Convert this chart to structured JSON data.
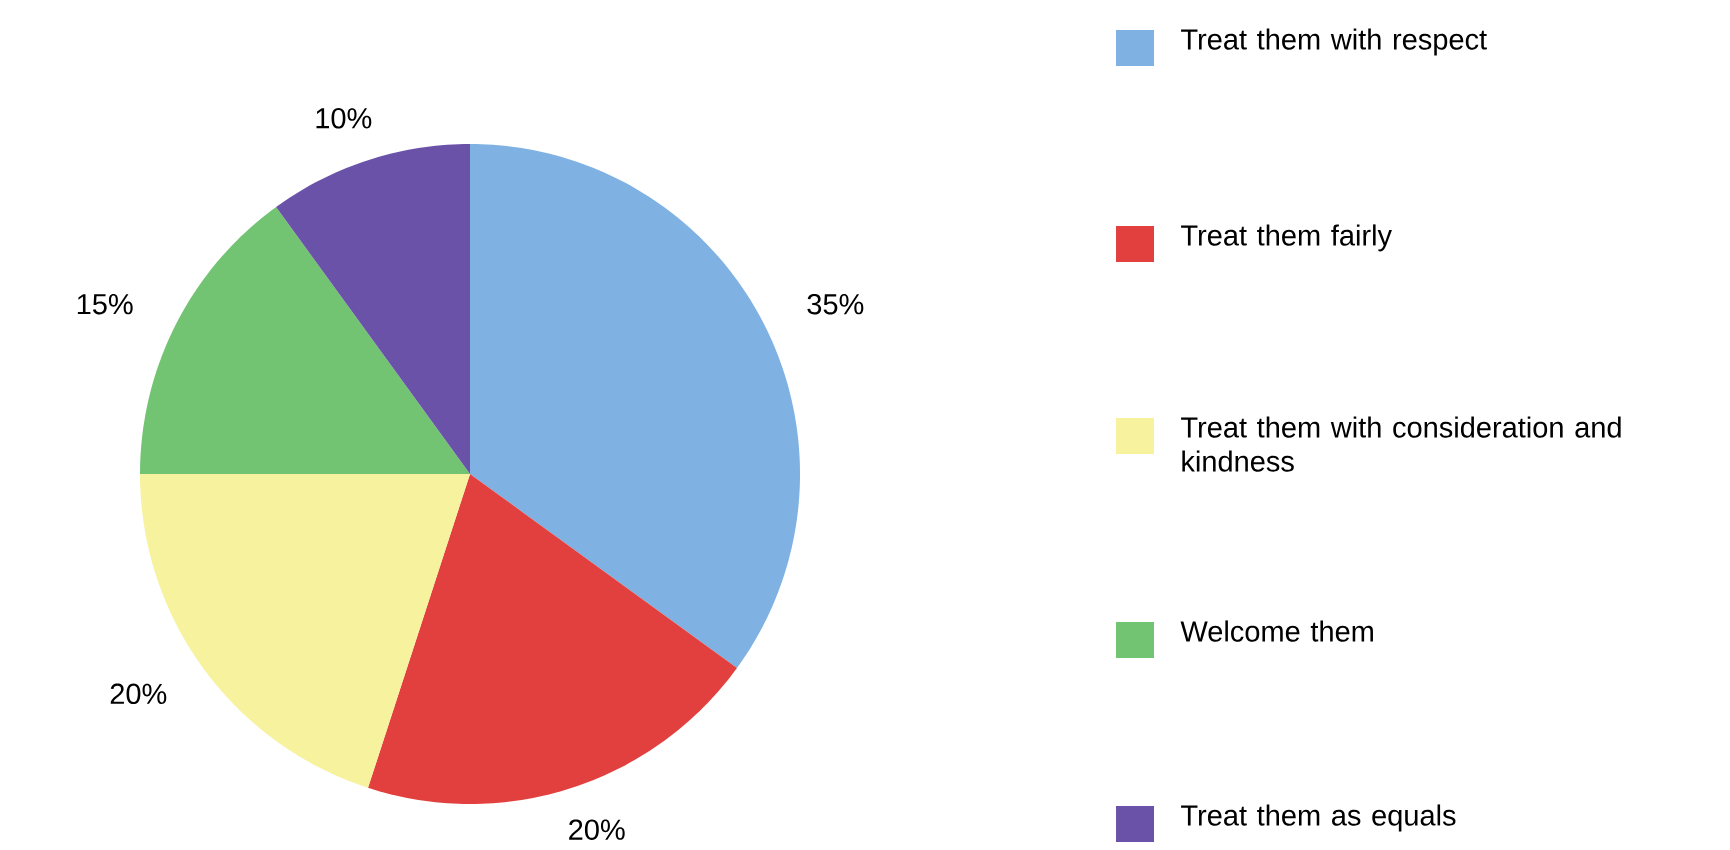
{
  "chart_data": {
    "type": "pie",
    "categories": [
      "Treat them with respect",
      "Treat them fairly",
      "Treat them with consideration and kindness",
      "Welcome them",
      "Treat them as equals"
    ],
    "values": [
      35,
      20,
      20,
      15,
      10
    ],
    "value_labels": [
      "35%",
      "20%",
      "20%",
      "15%",
      "10%"
    ],
    "colors": [
      "#7fb1e3",
      "#e2403e",
      "#f6f29e",
      "#72c472",
      "#6a52a8"
    ],
    "legend": "right"
  }
}
